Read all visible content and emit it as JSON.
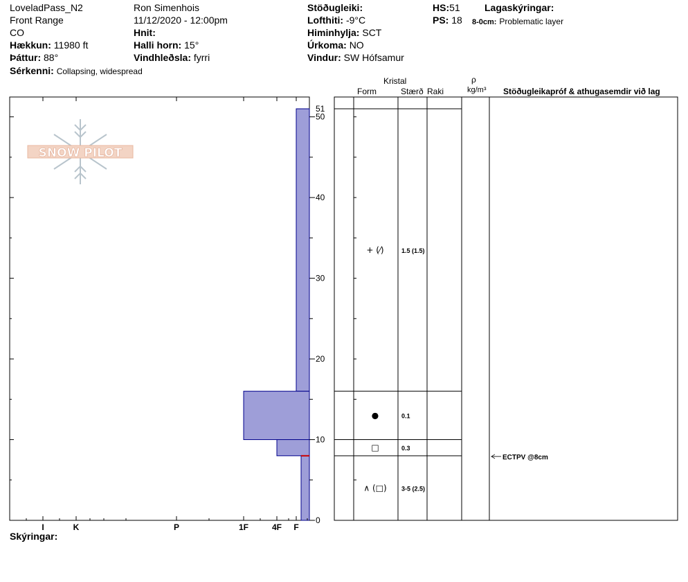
{
  "header": {
    "site": "LoveladPass_N2",
    "range": "Front Range",
    "state": "CO",
    "elevation_label": "Hækkun:",
    "elevation_value": "11980 ft",
    "aspect_label": "Þáttur:",
    "aspect_value": "88°",
    "features_label": "Sérkenni:",
    "features_value": "Collapsing, widespread",
    "observer": "Ron Simenhois",
    "datetime": "11/12/2020 - 12:00pm",
    "coords_label": "Hnit:",
    "slope_label": "Halli horn:",
    "slope_value": "15°",
    "wind_load_label": "Vindhleðsla:",
    "wind_load_value": "fyrri",
    "stability_label": "Stöðugleiki:",
    "air_temp_label": "Lofthiti:",
    "air_temp_value": "-9°C",
    "sky_label": "Himinhylja:",
    "sky_value": "SCT",
    "precip_label": "Úrkoma:",
    "precip_value": "NO",
    "wind_label": "Vindur:",
    "wind_value": "SW Hófsamur",
    "hs_label": "HS:",
    "hs_value": "51",
    "ps_label": "PS:",
    "ps_value": "18",
    "layer_notes_label": "Lagaskýringar:",
    "layer_note_depth": "8-0cm:",
    "layer_note_text": "Problematic layer"
  },
  "table_headers": {
    "crystal": "Kristal",
    "form": "Form",
    "size": "Stærð",
    "moisture": "Raki",
    "rho": "ρ",
    "density_unit": "kg/m³",
    "tests": "Stöðugleikapróf & athugasemdir við lag"
  },
  "logo_text": "SNOW PILOT",
  "footer": {
    "notes_label": "Skýringar:"
  },
  "colors": {
    "layer_fill": "#9e9ed8",
    "layer_stroke": "#00008b",
    "weak_layer": "#cc0000"
  },
  "chart_data": {
    "type": "bar",
    "orientation": "horizontal",
    "title": "",
    "ylim": [
      0,
      51
    ],
    "ytick_values": [
      0,
      10,
      20,
      30,
      40,
      50
    ],
    "ytick_labels": [
      "0",
      "10",
      "20",
      "30",
      "40",
      "50"
    ],
    "y_top_label": "51",
    "x_categories": [
      "I",
      "K",
      "P",
      "1F",
      "4F",
      "F"
    ],
    "x_category_positions": [
      1,
      2,
      3,
      4,
      5,
      6
    ],
    "layers": [
      {
        "bottom": 16,
        "top": 51,
        "hardness": "F",
        "form": "+ (⁄)",
        "size": "1.5 (1.5)"
      },
      {
        "bottom": 10,
        "top": 16,
        "hardness": "1F",
        "form": "●",
        "size": "0.1"
      },
      {
        "bottom": 8,
        "top": 10,
        "hardness": "4F",
        "form": "□",
        "size": "0.3"
      },
      {
        "bottom": 0,
        "top": 8,
        "hardness": "F+",
        "form": "∧ (□)",
        "size": "3-5 (2.5)"
      }
    ],
    "tests": [
      {
        "depth": 8,
        "label": "ECTPV @8cm"
      }
    ]
  }
}
